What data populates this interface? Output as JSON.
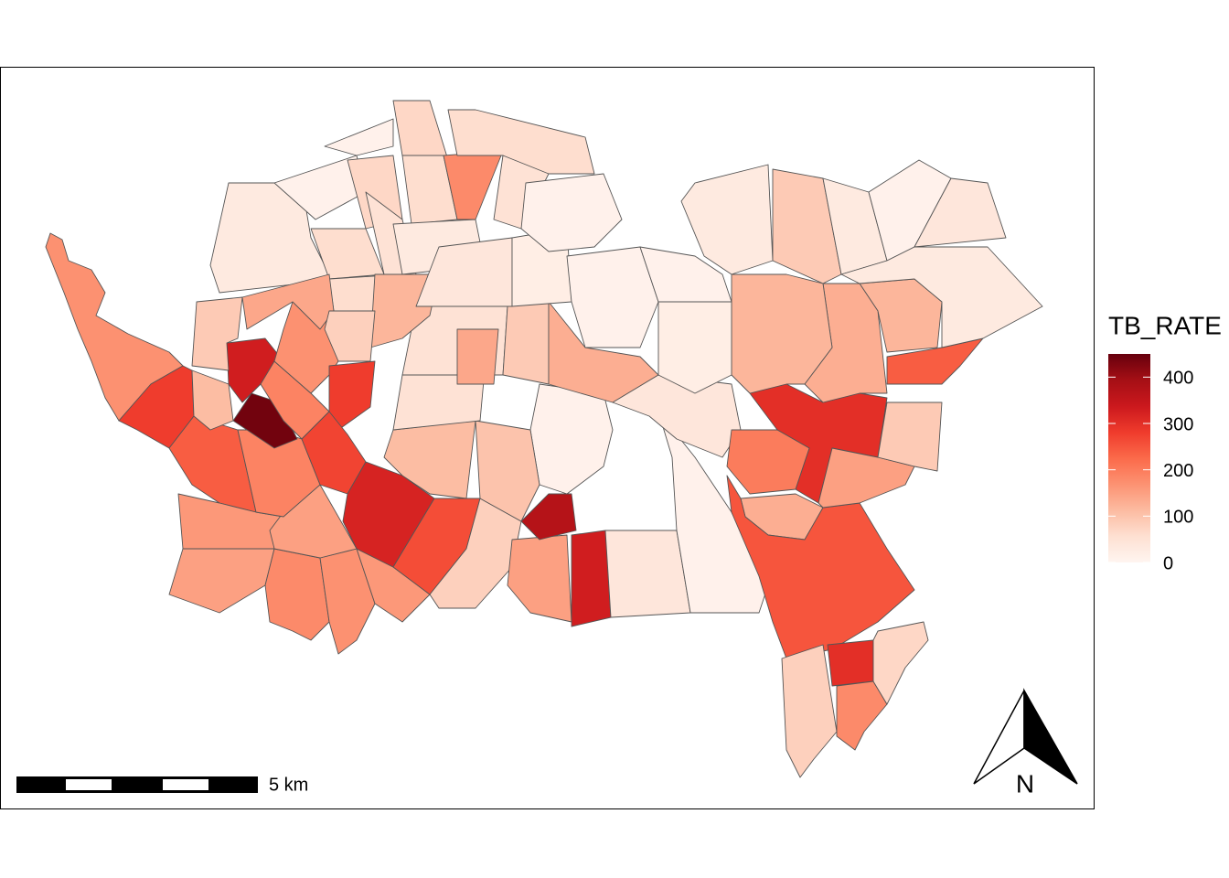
{
  "chart_data": {
    "type": "choropleth",
    "legend_title": "TB_RATE",
    "lim": [
      0,
      450
    ],
    "ticks": [
      0,
      100,
      200,
      300,
      400
    ],
    "palette": [
      "#fff5f0",
      "#fee0d2",
      "#fcbba1",
      "#fc9272",
      "#fb6a4a",
      "#ef3b2c",
      "#cb181d",
      "#a50f15",
      "#67000d"
    ],
    "values": [
      170,
      280,
      240,
      160,
      150,
      180,
      170,
      160,
      150,
      190,
      440,
      330,
      110,
      90,
      190,
      170,
      280,
      270,
      320,
      260,
      80,
      150,
      370,
      330,
      40,
      10,
      10,
      110,
      100,
      50,
      50,
      90,
      130,
      140,
      40,
      300,
      200,
      130,
      250,
      150,
      90,
      240,
      120,
      130,
      120,
      20,
      80,
      300,
      180,
      70,
      30,
      10,
      10,
      70,
      60,
      50,
      70,
      60,
      180,
      60,
      50,
      30,
      60,
      140,
      120,
      80,
      40,
      20,
      10,
      10,
      10,
      30,
      90,
      30,
      10,
      40,
      30
    ],
    "scale_bar_label": "5 km",
    "north_label": "N"
  }
}
